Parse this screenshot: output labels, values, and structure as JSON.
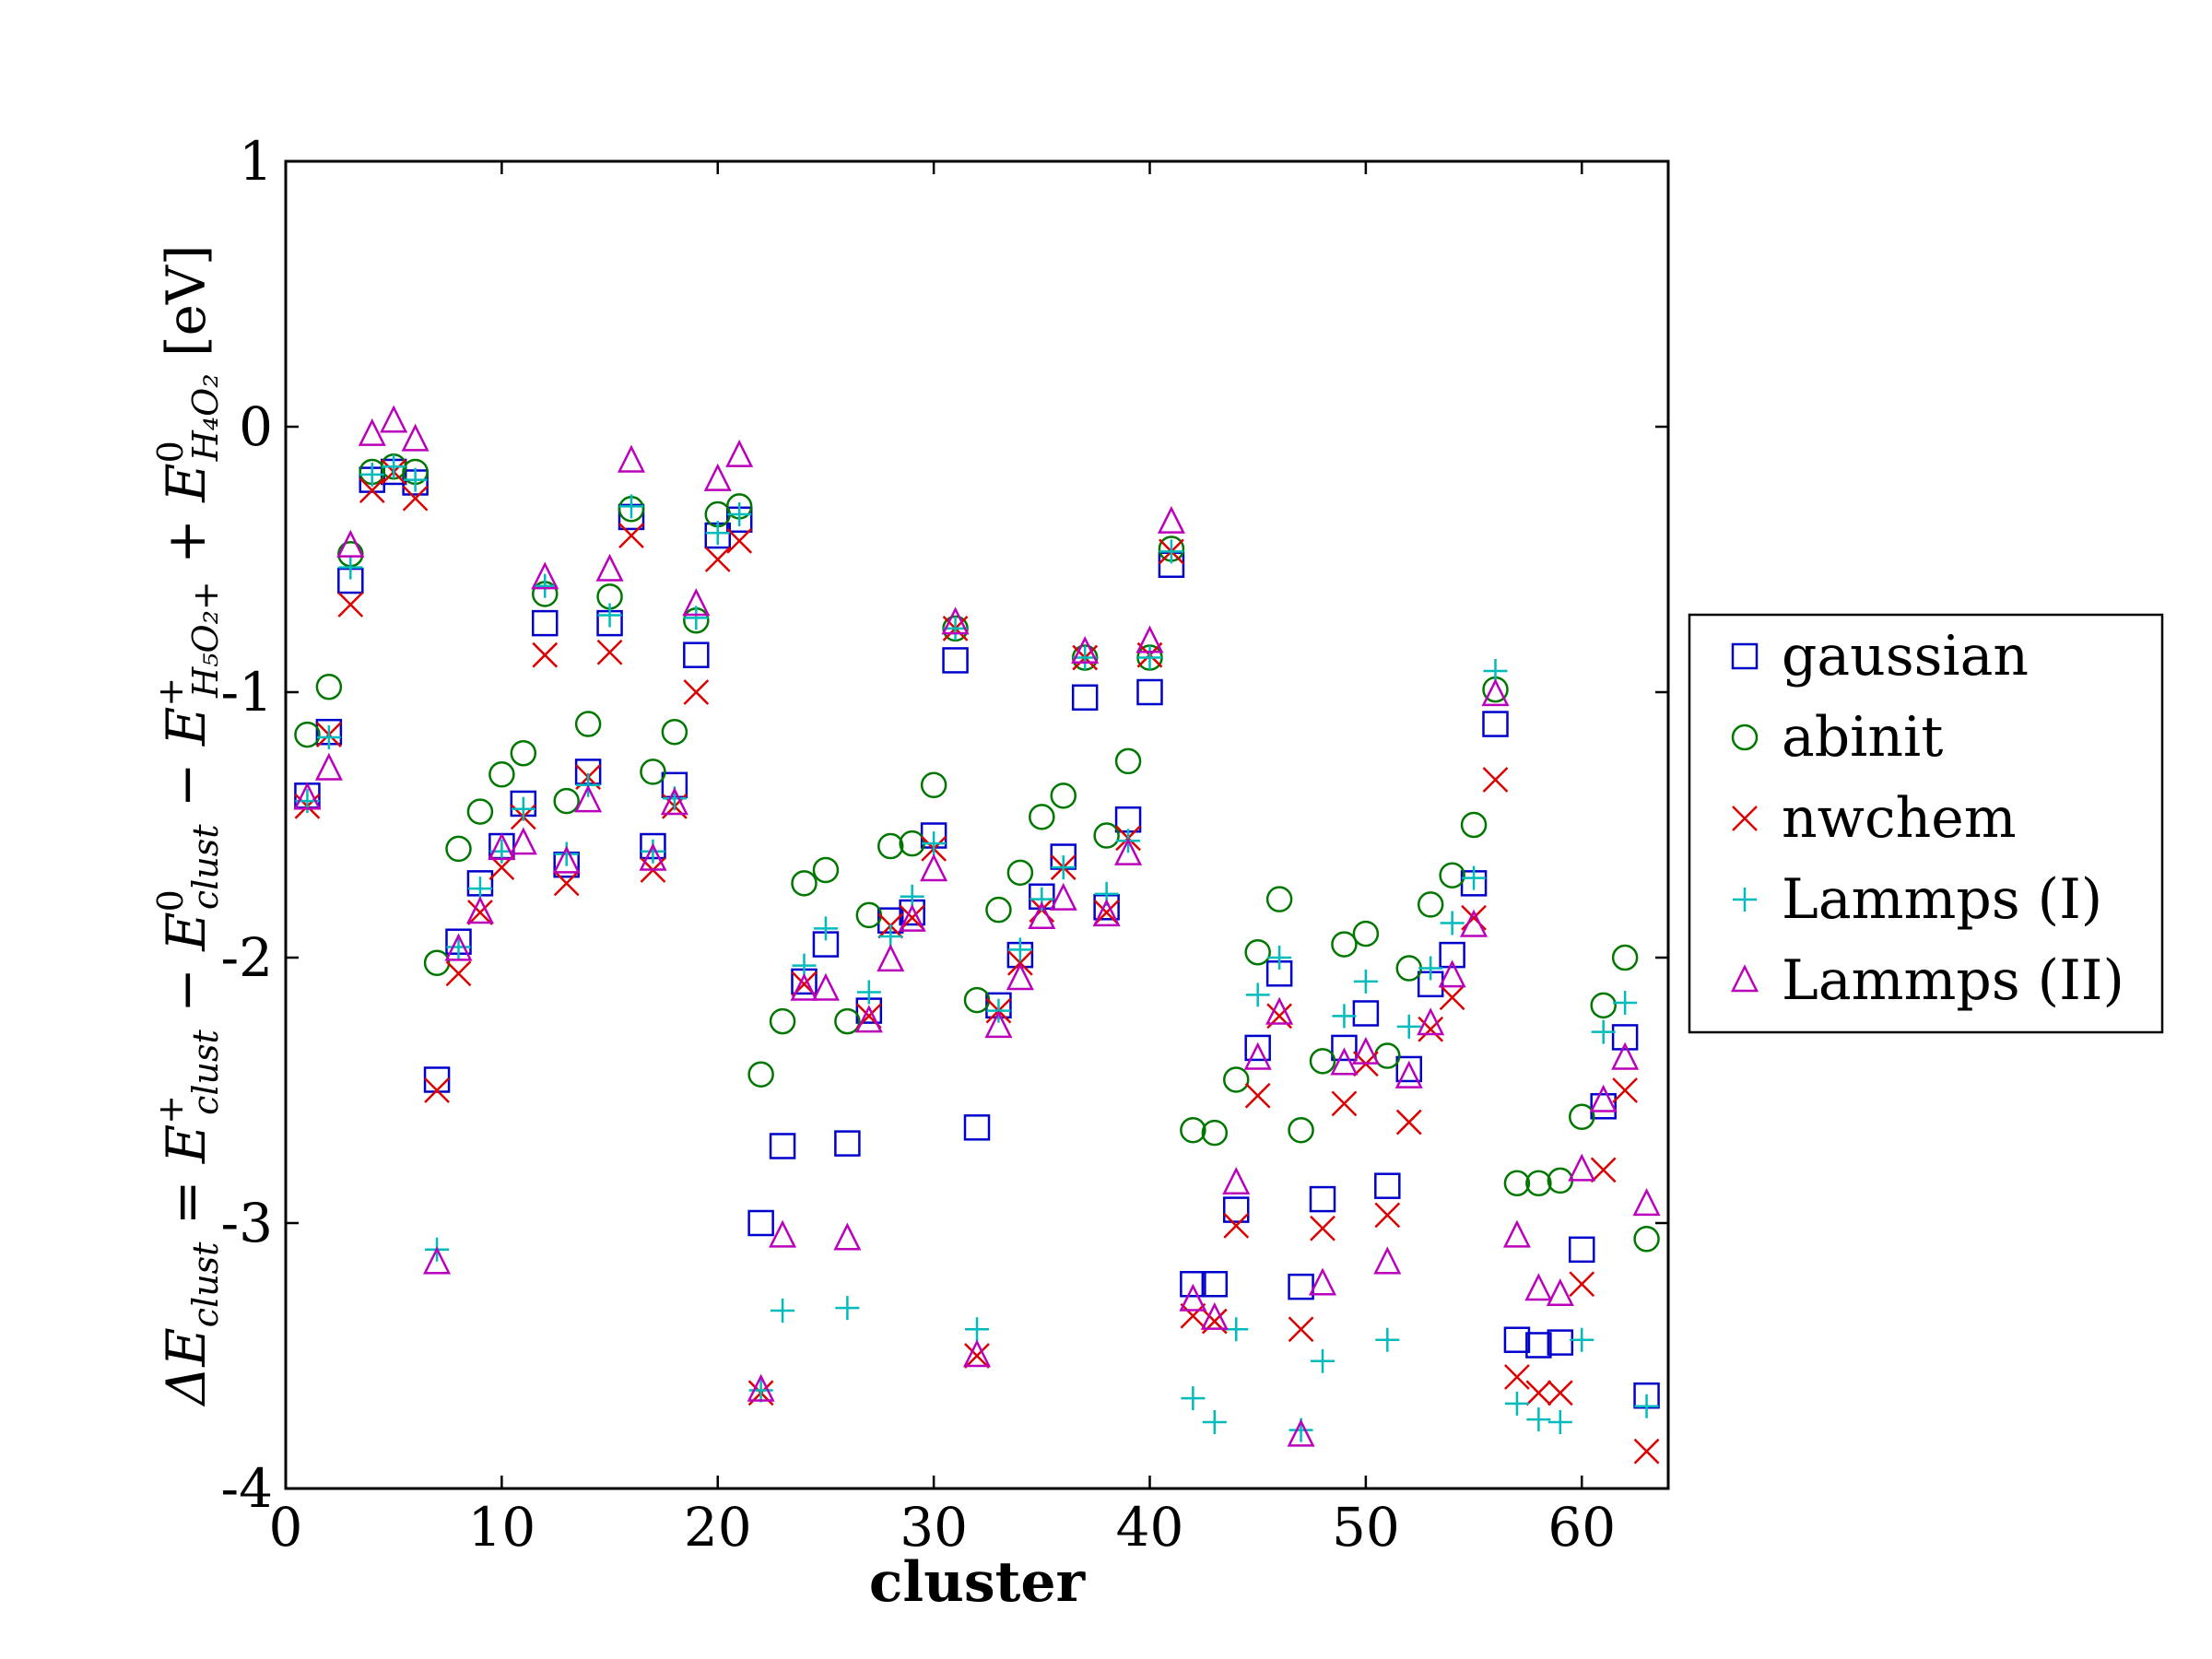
{
  "chart_data": {
    "type": "scatter",
    "title": "",
    "xlabel": "cluster",
    "ylabel": {
      "delta": "ΔE",
      "s1": "clust",
      "eq": " = ",
      "e1": "E",
      "s2": "clust",
      "sup2": "+",
      "minus1": " − ",
      "e2": "E",
      "s3": "clust",
      "sup3": "0",
      "minus2": " − ",
      "e3": "E",
      "s4": "H₅O₂+",
      "sup4": "+",
      "plus": " + ",
      "e4": "E",
      "s5": "H₄O₂",
      "sup5": "0",
      "unit": " [eV]"
    },
    "xlim": [
      0,
      64
    ],
    "ylim": [
      -4,
      1
    ],
    "xticks": [
      "0",
      "10",
      "20",
      "30",
      "40",
      "50",
      "60"
    ],
    "yticks": [
      "1",
      "0",
      "-1",
      "-2",
      "-3",
      "-4"
    ],
    "legend_position": "outside-right",
    "series": [
      {
        "name": "gaussian",
        "marker": "square",
        "color": "#0000cc",
        "points": [
          [
            1,
            -1.39
          ],
          [
            2,
            -1.15
          ],
          [
            3,
            -0.58
          ],
          [
            4,
            -0.2
          ],
          [
            5,
            -0.17
          ],
          [
            6,
            -0.21
          ],
          [
            7,
            -2.46
          ],
          [
            8,
            -1.94
          ],
          [
            9,
            -1.72
          ],
          [
            10,
            -1.58
          ],
          [
            11,
            -1.42
          ],
          [
            12,
            -0.74
          ],
          [
            13,
            -1.65
          ],
          [
            14,
            -1.3
          ],
          [
            15,
            -0.74
          ],
          [
            16,
            -0.34
          ],
          [
            17,
            -1.58
          ],
          [
            18,
            -1.35
          ],
          [
            19,
            -0.86
          ],
          [
            20,
            -0.41
          ],
          [
            21,
            -0.35
          ],
          [
            22,
            -3.0
          ],
          [
            23,
            -2.71
          ],
          [
            24,
            -2.09
          ],
          [
            25,
            -1.95
          ],
          [
            26,
            -2.7
          ],
          [
            27,
            -2.2
          ],
          [
            28,
            -1.86
          ],
          [
            29,
            -1.83
          ],
          [
            30,
            -1.54
          ],
          [
            31,
            -0.88
          ],
          [
            32,
            -2.64
          ],
          [
            33,
            -2.18
          ],
          [
            34,
            -1.99
          ],
          [
            35,
            -1.77
          ],
          [
            36,
            -1.62
          ],
          [
            37,
            -1.02
          ],
          [
            38,
            -1.81
          ],
          [
            39,
            -1.48
          ],
          [
            40,
            -1.0
          ],
          [
            41,
            -0.52
          ],
          [
            42,
            -3.23
          ],
          [
            43,
            -3.23
          ],
          [
            44,
            -2.95
          ],
          [
            45,
            -2.34
          ],
          [
            46,
            -2.06
          ],
          [
            47,
            -3.24
          ],
          [
            48,
            -2.91
          ],
          [
            49,
            -2.34
          ],
          [
            50,
            -2.21
          ],
          [
            51,
            -2.86
          ],
          [
            52,
            -2.42
          ],
          [
            53,
            -2.1
          ],
          [
            54,
            -1.99
          ],
          [
            55,
            -1.72
          ],
          [
            56,
            -1.12
          ],
          [
            57,
            -3.44
          ],
          [
            58,
            -3.46
          ],
          [
            59,
            -3.45
          ],
          [
            60,
            -3.1
          ],
          [
            61,
            -2.56
          ],
          [
            62,
            -2.3
          ],
          [
            63,
            -3.65
          ]
        ]
      },
      {
        "name": "abinit",
        "marker": "circle",
        "color": "#007700",
        "points": [
          [
            1,
            -1.16
          ],
          [
            2,
            -0.98
          ],
          [
            3,
            -0.48
          ],
          [
            4,
            -0.17
          ],
          [
            5,
            -0.15
          ],
          [
            6,
            -0.17
          ],
          [
            7,
            -2.02
          ],
          [
            8,
            -1.59
          ],
          [
            9,
            -1.45
          ],
          [
            10,
            -1.31
          ],
          [
            11,
            -1.23
          ],
          [
            12,
            -0.63
          ],
          [
            13,
            -1.41
          ],
          [
            14,
            -1.12
          ],
          [
            15,
            -0.64
          ],
          [
            16,
            -0.31
          ],
          [
            17,
            -1.3
          ],
          [
            18,
            -1.15
          ],
          [
            19,
            -0.73
          ],
          [
            20,
            -0.33
          ],
          [
            21,
            -0.3
          ],
          [
            22,
            -2.44
          ],
          [
            23,
            -2.24
          ],
          [
            24,
            -1.72
          ],
          [
            25,
            -1.67
          ],
          [
            26,
            -2.24
          ],
          [
            27,
            -1.84
          ],
          [
            28,
            -1.58
          ],
          [
            29,
            -1.57
          ],
          [
            30,
            -1.35
          ],
          [
            31,
            -0.76
          ],
          [
            32,
            -2.16
          ],
          [
            33,
            -1.82
          ],
          [
            34,
            -1.68
          ],
          [
            35,
            -1.47
          ],
          [
            36,
            -1.39
          ],
          [
            37,
            -0.87
          ],
          [
            38,
            -1.54
          ],
          [
            39,
            -1.26
          ],
          [
            40,
            -0.87
          ],
          [
            41,
            -0.46
          ],
          [
            42,
            -2.65
          ],
          [
            43,
            -2.66
          ],
          [
            44,
            -2.46
          ],
          [
            45,
            -1.98
          ],
          [
            46,
            -1.78
          ],
          [
            47,
            -2.65
          ],
          [
            48,
            -2.39
          ],
          [
            49,
            -1.95
          ],
          [
            50,
            -1.91
          ],
          [
            51,
            -2.37
          ],
          [
            52,
            -2.04
          ],
          [
            53,
            -1.8
          ],
          [
            54,
            -1.69
          ],
          [
            55,
            -1.5
          ],
          [
            56,
            -0.99
          ],
          [
            57,
            -2.85
          ],
          [
            58,
            -2.85
          ],
          [
            59,
            -2.84
          ],
          [
            60,
            -2.6
          ],
          [
            61,
            -2.18
          ],
          [
            62,
            -2.0
          ],
          [
            63,
            -3.06
          ]
        ]
      },
      {
        "name": "nwchem",
        "marker": "cross",
        "color": "#dd0000",
        "points": [
          [
            1,
            -1.43
          ],
          [
            2,
            -1.16
          ],
          [
            3,
            -0.67
          ],
          [
            4,
            -0.24
          ],
          [
            5,
            -0.17
          ],
          [
            6,
            -0.27
          ],
          [
            7,
            -2.5
          ],
          [
            8,
            -2.06
          ],
          [
            9,
            -1.83
          ],
          [
            10,
            -1.66
          ],
          [
            11,
            -1.47
          ],
          [
            12,
            -0.86
          ],
          [
            13,
            -1.72
          ],
          [
            14,
            -1.32
          ],
          [
            15,
            -0.85
          ],
          [
            16,
            -0.41
          ],
          [
            17,
            -1.67
          ],
          [
            18,
            -1.43
          ],
          [
            19,
            -1.0
          ],
          [
            20,
            -0.5
          ],
          [
            21,
            -0.43
          ],
          [
            22,
            -3.64
          ],
          [
            24,
            -2.1
          ],
          [
            27,
            -2.22
          ],
          [
            28,
            -1.88
          ],
          [
            29,
            -1.85
          ],
          [
            30,
            -1.59
          ],
          [
            31,
            -0.76
          ],
          [
            32,
            -3.5
          ],
          [
            33,
            -2.2
          ],
          [
            34,
            -2.02
          ],
          [
            35,
            -1.82
          ],
          [
            36,
            -1.66
          ],
          [
            37,
            -0.87
          ],
          [
            38,
            -1.83
          ],
          [
            39,
            -1.55
          ],
          [
            40,
            -0.86
          ],
          [
            41,
            -0.47
          ],
          [
            42,
            -3.35
          ],
          [
            43,
            -3.37
          ],
          [
            44,
            -3.01
          ],
          [
            45,
            -2.52
          ],
          [
            46,
            -2.22
          ],
          [
            47,
            -3.4
          ],
          [
            48,
            -3.02
          ],
          [
            49,
            -2.55
          ],
          [
            50,
            -2.4
          ],
          [
            51,
            -2.97
          ],
          [
            52,
            -2.62
          ],
          [
            53,
            -2.27
          ],
          [
            54,
            -2.15
          ],
          [
            55,
            -1.85
          ],
          [
            56,
            -1.33
          ],
          [
            57,
            -3.58
          ],
          [
            58,
            -3.64
          ],
          [
            59,
            -3.64
          ],
          [
            60,
            -3.23
          ],
          [
            61,
            -2.8
          ],
          [
            62,
            -2.5
          ],
          [
            63,
            -3.86
          ]
        ]
      },
      {
        "name": "Lammps (I)",
        "marker": "plus",
        "color": "#00bbbb",
        "points": [
          [
            1,
            -1.41
          ],
          [
            2,
            -1.17
          ],
          [
            3,
            -0.53
          ],
          [
            4,
            -0.18
          ],
          [
            5,
            -0.15
          ],
          [
            6,
            -0.2
          ],
          [
            7,
            -3.1
          ],
          [
            8,
            -1.96
          ],
          [
            9,
            -1.74
          ],
          [
            10,
            -1.6
          ],
          [
            11,
            -1.44
          ],
          [
            12,
            -0.6
          ],
          [
            13,
            -1.61
          ],
          [
            14,
            -1.35
          ],
          [
            15,
            -0.71
          ],
          [
            16,
            -0.3
          ],
          [
            17,
            -1.6
          ],
          [
            18,
            -1.4
          ],
          [
            19,
            -0.72
          ],
          [
            20,
            -0.4
          ],
          [
            21,
            -0.33
          ],
          [
            22,
            -3.63
          ],
          [
            23,
            -3.33
          ],
          [
            24,
            -2.03
          ],
          [
            25,
            -1.89
          ],
          [
            26,
            -3.32
          ],
          [
            27,
            -2.13
          ],
          [
            28,
            -1.92
          ],
          [
            29,
            -1.77
          ],
          [
            30,
            -1.57
          ],
          [
            31,
            -0.76
          ],
          [
            32,
            -3.4
          ],
          [
            33,
            -2.2
          ],
          [
            34,
            -1.97
          ],
          [
            35,
            -1.78
          ],
          [
            36,
            -1.66
          ],
          [
            37,
            -0.87
          ],
          [
            38,
            -1.76
          ],
          [
            39,
            -1.56
          ],
          [
            40,
            -0.87
          ],
          [
            41,
            -0.47
          ],
          [
            42,
            -3.66
          ],
          [
            43,
            -3.75
          ],
          [
            44,
            -3.4
          ],
          [
            45,
            -2.14
          ],
          [
            46,
            -2.0
          ],
          [
            47,
            -3.78
          ],
          [
            48,
            -3.52
          ],
          [
            49,
            -2.22
          ],
          [
            50,
            -2.09
          ],
          [
            51,
            -3.44
          ],
          [
            52,
            -2.26
          ],
          [
            53,
            -2.04
          ],
          [
            54,
            -1.87
          ],
          [
            55,
            -1.7
          ],
          [
            56,
            -0.92
          ],
          [
            57,
            -3.68
          ],
          [
            58,
            -3.74
          ],
          [
            59,
            -3.75
          ],
          [
            60,
            -3.44
          ],
          [
            61,
            -2.28
          ],
          [
            62,
            -2.17
          ],
          [
            63,
            -3.69
          ]
        ]
      },
      {
        "name": "Lammps (II)",
        "marker": "triangle",
        "color": "#bb00bb",
        "points": [
          [
            1,
            -1.4
          ],
          [
            2,
            -1.29
          ],
          [
            3,
            -0.45
          ],
          [
            4,
            -0.03
          ],
          [
            5,
            0.02
          ],
          [
            6,
            -0.05
          ],
          [
            7,
            -3.15
          ],
          [
            8,
            -1.97
          ],
          [
            9,
            -1.83
          ],
          [
            10,
            -1.59
          ],
          [
            11,
            -1.57
          ],
          [
            12,
            -0.57
          ],
          [
            13,
            -1.64
          ],
          [
            14,
            -1.41
          ],
          [
            15,
            -0.54
          ],
          [
            16,
            -0.13
          ],
          [
            17,
            -1.63
          ],
          [
            18,
            -1.42
          ],
          [
            19,
            -0.67
          ],
          [
            20,
            -0.2
          ],
          [
            21,
            -0.11
          ],
          [
            22,
            -3.63
          ],
          [
            23,
            -3.05
          ],
          [
            24,
            -2.12
          ],
          [
            25,
            -2.12
          ],
          [
            26,
            -3.06
          ],
          [
            27,
            -2.24
          ],
          [
            28,
            -2.01
          ],
          [
            29,
            -1.86
          ],
          [
            30,
            -1.67
          ],
          [
            31,
            -0.74
          ],
          [
            32,
            -3.5
          ],
          [
            33,
            -2.26
          ],
          [
            34,
            -2.08
          ],
          [
            35,
            -1.85
          ],
          [
            36,
            -1.78
          ],
          [
            37,
            -0.85
          ],
          [
            38,
            -1.84
          ],
          [
            39,
            -1.61
          ],
          [
            40,
            -0.81
          ],
          [
            41,
            -0.36
          ],
          [
            42,
            -3.29
          ],
          [
            43,
            -3.36
          ],
          [
            44,
            -2.85
          ],
          [
            45,
            -2.38
          ],
          [
            46,
            -2.21
          ],
          [
            47,
            -3.8
          ],
          [
            48,
            -3.23
          ],
          [
            49,
            -2.4
          ],
          [
            50,
            -2.36
          ],
          [
            51,
            -3.15
          ],
          [
            52,
            -2.45
          ],
          [
            53,
            -2.25
          ],
          [
            54,
            -2.07
          ],
          [
            55,
            -1.88
          ],
          [
            56,
            -1.01
          ],
          [
            57,
            -3.05
          ],
          [
            58,
            -3.25
          ],
          [
            59,
            -3.27
          ],
          [
            60,
            -2.8
          ],
          [
            61,
            -2.54
          ],
          [
            62,
            -2.38
          ],
          [
            63,
            -2.93
          ]
        ]
      }
    ]
  }
}
